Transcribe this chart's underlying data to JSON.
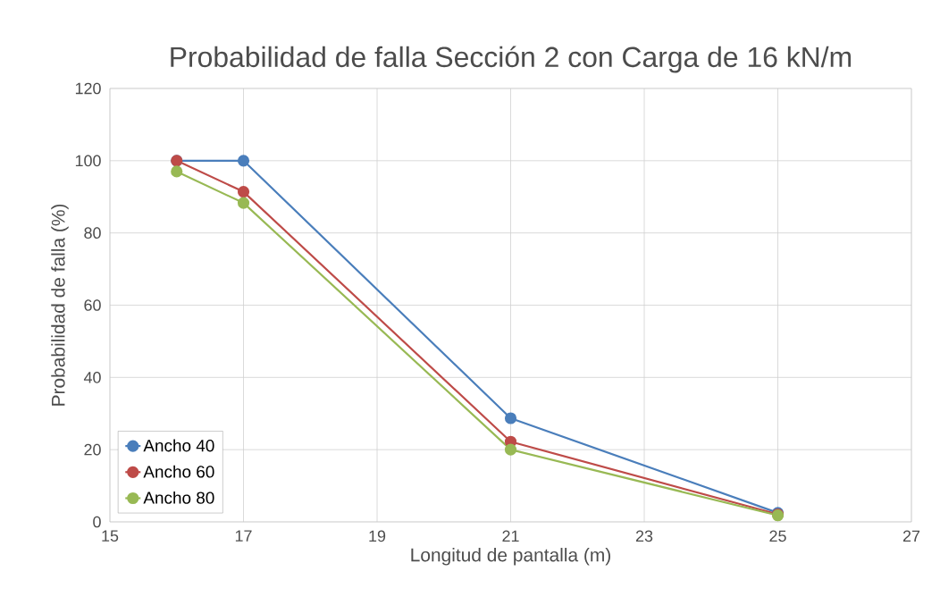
{
  "chart_data": {
    "type": "line",
    "title": "Probabilidad de falla Sección 2 con Carga de 16 kN/m",
    "xlabel": "Longitud de pantalla (m)",
    "ylabel": "Probabilidad de falla  (%)",
    "x": [
      16,
      17,
      21,
      25
    ],
    "series": [
      {
        "name": "Ancho 40",
        "color": "#4a7ebb",
        "values": [
          100,
          100,
          28.7,
          2.5
        ]
      },
      {
        "name": "Ancho 60",
        "color": "#be4b48",
        "values": [
          100,
          91.4,
          22.2,
          2.1
        ]
      },
      {
        "name": "Ancho 80",
        "color": "#98b954",
        "values": [
          97,
          88.3,
          20,
          1.8
        ]
      }
    ],
    "xlim": [
      15,
      27
    ],
    "xticks": [
      15,
      17,
      19,
      21,
      23,
      25,
      27
    ],
    "ylim": [
      0,
      120
    ],
    "yticks": [
      0,
      20,
      40,
      60,
      80,
      100,
      120
    ],
    "grid": true,
    "legend": "bottom left",
    "marker": "circle",
    "line_style": "solid"
  }
}
